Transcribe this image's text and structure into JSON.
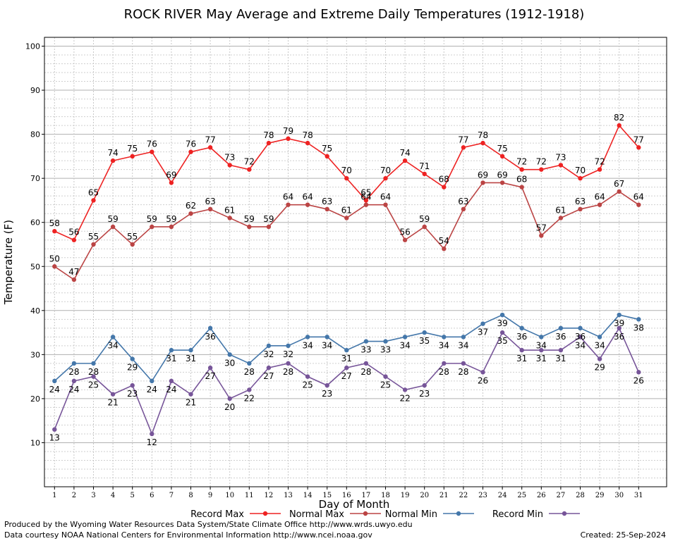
{
  "chart_data": {
    "type": "line",
    "title": "ROCK RIVER May Average and Extreme Daily Temperatures (1912-1918)",
    "xlabel": "Day of Month",
    "ylabel": "Temperature (F)",
    "ylim": [
      0,
      102
    ],
    "yticks": [
      10,
      20,
      30,
      40,
      50,
      60,
      70,
      80,
      90,
      100
    ],
    "x": [
      1,
      2,
      3,
      4,
      5,
      6,
      7,
      8,
      9,
      10,
      11,
      12,
      13,
      14,
      15,
      16,
      17,
      18,
      19,
      20,
      21,
      22,
      23,
      24,
      25,
      26,
      27,
      28,
      29,
      30,
      31
    ],
    "grid": true,
    "legend_position": "bottom",
    "series": [
      {
        "name": "Record Max",
        "color": "#ee2222",
        "values": [
          58,
          56,
          65,
          74,
          75,
          76,
          69,
          76,
          77,
          73,
          72,
          78,
          79,
          78,
          75,
          70,
          65,
          70,
          74,
          71,
          68,
          77,
          78,
          75,
          72,
          72,
          73,
          70,
          72,
          82,
          77
        ]
      },
      {
        "name": "Normal Max",
        "color": "#bb4444",
        "values": [
          50,
          47,
          55,
          59,
          55,
          59,
          59,
          62,
          63,
          61,
          59,
          59,
          64,
          64,
          63,
          61,
          64,
          64,
          56,
          59,
          54,
          63,
          69,
          69,
          68,
          57,
          61,
          63,
          64,
          67,
          64
        ]
      },
      {
        "name": "Normal Min",
        "color": "#4477aa",
        "values": [
          24,
          28,
          28,
          34,
          29,
          24,
          31,
          31,
          36,
          30,
          28,
          32,
          32,
          34,
          34,
          31,
          33,
          33,
          34,
          35,
          34,
          34,
          37,
          39,
          36,
          34,
          36,
          36,
          34,
          39,
          38
        ]
      },
      {
        "name": "Record Min",
        "color": "#775599",
        "values": [
          13,
          24,
          25,
          21,
          23,
          12,
          24,
          21,
          27,
          20,
          22,
          27,
          28,
          25,
          23,
          27,
          28,
          25,
          22,
          23,
          28,
          28,
          26,
          35,
          31,
          31,
          31,
          34,
          29,
          36,
          26
        ]
      }
    ]
  },
  "footer": {
    "produced_by": "Produced by the Wyoming Water Resources Data System/State Climate Office http://www.wrds.uwyo.edu",
    "courtesy": "Data courtesy NOAA National Centers for Environmental Information http://www.ncei.noaa.gov",
    "created": "Created:  25-Sep-2024"
  }
}
